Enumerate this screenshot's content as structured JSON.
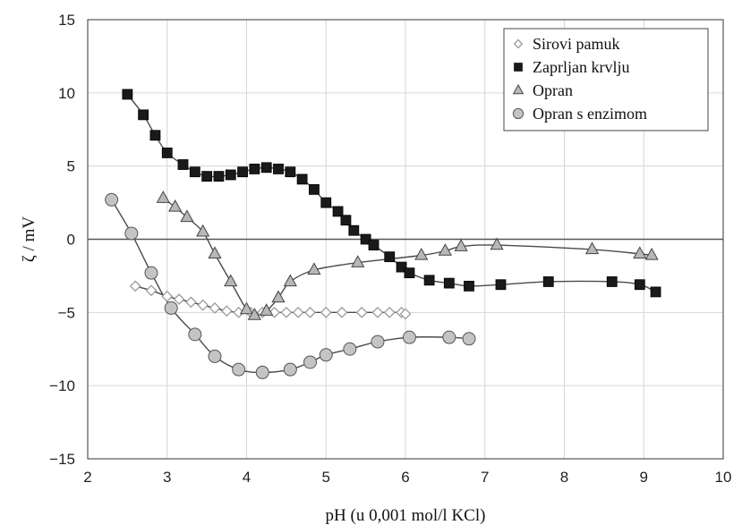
{
  "chart_data": {
    "type": "scatter",
    "title": "",
    "xlabel": "pH (u 0,001 mol/l KCl)",
    "ylabel": "ζ / mV",
    "xlim": [
      2,
      10
    ],
    "ylim": [
      -15,
      15
    ],
    "x_ticks": [
      2,
      3,
      4,
      5,
      6,
      7,
      8,
      9,
      10
    ],
    "y_ticks": [
      15,
      10,
      5,
      0,
      -5,
      -10,
      -15
    ],
    "y_tick_labels": [
      "15",
      "10",
      "5",
      "0",
      "−5",
      "−10",
      "−15"
    ],
    "grid": true,
    "legend_position": "top-right",
    "series": [
      {
        "name": "Sirovi pamuk",
        "marker": "diamond-open",
        "color": "#9a9a9a",
        "points": [
          [
            2.6,
            -3.2
          ],
          [
            2.8,
            -3.5
          ],
          [
            3.0,
            -3.9
          ],
          [
            3.15,
            -4.1
          ],
          [
            3.3,
            -4.3
          ],
          [
            3.45,
            -4.5
          ],
          [
            3.6,
            -4.7
          ],
          [
            3.75,
            -4.9
          ],
          [
            3.9,
            -5.0
          ],
          [
            4.05,
            -5.0
          ],
          [
            4.2,
            -5.0
          ],
          [
            4.35,
            -5.0
          ],
          [
            4.5,
            -5.0
          ],
          [
            4.65,
            -5.0
          ],
          [
            4.8,
            -5.0
          ],
          [
            5.0,
            -5.0
          ],
          [
            5.2,
            -5.0
          ],
          [
            5.45,
            -5.0
          ],
          [
            5.65,
            -5.0
          ],
          [
            5.8,
            -5.0
          ],
          [
            5.95,
            -5.0
          ],
          [
            6.0,
            -5.1
          ]
        ]
      },
      {
        "name": "Zaprljan krvlju",
        "marker": "square-filled",
        "color": "#1a1a1a",
        "points": [
          [
            2.5,
            9.9
          ],
          [
            2.7,
            8.5
          ],
          [
            2.85,
            7.1
          ],
          [
            3.0,
            5.9
          ],
          [
            3.2,
            5.1
          ],
          [
            3.35,
            4.6
          ],
          [
            3.5,
            4.3
          ],
          [
            3.65,
            4.3
          ],
          [
            3.8,
            4.4
          ],
          [
            3.95,
            4.6
          ],
          [
            4.1,
            4.8
          ],
          [
            4.25,
            4.9
          ],
          [
            4.4,
            4.8
          ],
          [
            4.55,
            4.6
          ],
          [
            4.7,
            4.1
          ],
          [
            4.85,
            3.4
          ],
          [
            5.0,
            2.5
          ],
          [
            5.15,
            1.9
          ],
          [
            5.25,
            1.3
          ],
          [
            5.35,
            0.6
          ],
          [
            5.5,
            0.0
          ],
          [
            5.6,
            -0.4
          ],
          [
            5.8,
            -1.2
          ],
          [
            5.95,
            -1.9
          ],
          [
            6.05,
            -2.3
          ],
          [
            6.3,
            -2.8
          ],
          [
            6.55,
            -3.0
          ],
          [
            6.8,
            -3.2
          ],
          [
            7.2,
            -3.1
          ],
          [
            7.8,
            -2.9
          ],
          [
            8.6,
            -2.9
          ],
          [
            8.95,
            -3.1
          ],
          [
            9.15,
            -3.6
          ]
        ]
      },
      {
        "name": "Opran",
        "marker": "triangle-filled",
        "color": "#b8b8b8",
        "points": [
          [
            2.95,
            2.8
          ],
          [
            3.1,
            2.2
          ],
          [
            3.25,
            1.5
          ],
          [
            3.45,
            0.5
          ],
          [
            3.6,
            -1.0
          ],
          [
            3.8,
            -2.9
          ],
          [
            4.0,
            -4.8
          ],
          [
            4.1,
            -5.2
          ],
          [
            4.25,
            -4.9
          ],
          [
            4.4,
            -4.0
          ],
          [
            4.55,
            -2.9
          ],
          [
            4.85,
            -2.1
          ],
          [
            5.4,
            -1.6
          ],
          [
            6.2,
            -1.1
          ],
          [
            6.5,
            -0.8
          ],
          [
            6.7,
            -0.5
          ],
          [
            7.15,
            -0.4
          ],
          [
            8.35,
            -0.7
          ],
          [
            8.95,
            -1.0
          ],
          [
            9.1,
            -1.1
          ]
        ]
      },
      {
        "name": "Opran s enzimom",
        "marker": "circle-filled",
        "color": "#c4c4c4",
        "points": [
          [
            2.3,
            2.7
          ],
          [
            2.55,
            0.4
          ],
          [
            2.8,
            -2.3
          ],
          [
            3.05,
            -4.7
          ],
          [
            3.35,
            -6.5
          ],
          [
            3.6,
            -8.0
          ],
          [
            3.9,
            -8.9
          ],
          [
            4.2,
            -9.1
          ],
          [
            4.55,
            -8.9
          ],
          [
            4.8,
            -8.4
          ],
          [
            5.0,
            -7.9
          ],
          [
            5.3,
            -7.5
          ],
          [
            5.65,
            -7.0
          ],
          [
            6.05,
            -6.7
          ],
          [
            6.55,
            -6.7
          ],
          [
            6.8,
            -6.8
          ]
        ]
      }
    ]
  }
}
